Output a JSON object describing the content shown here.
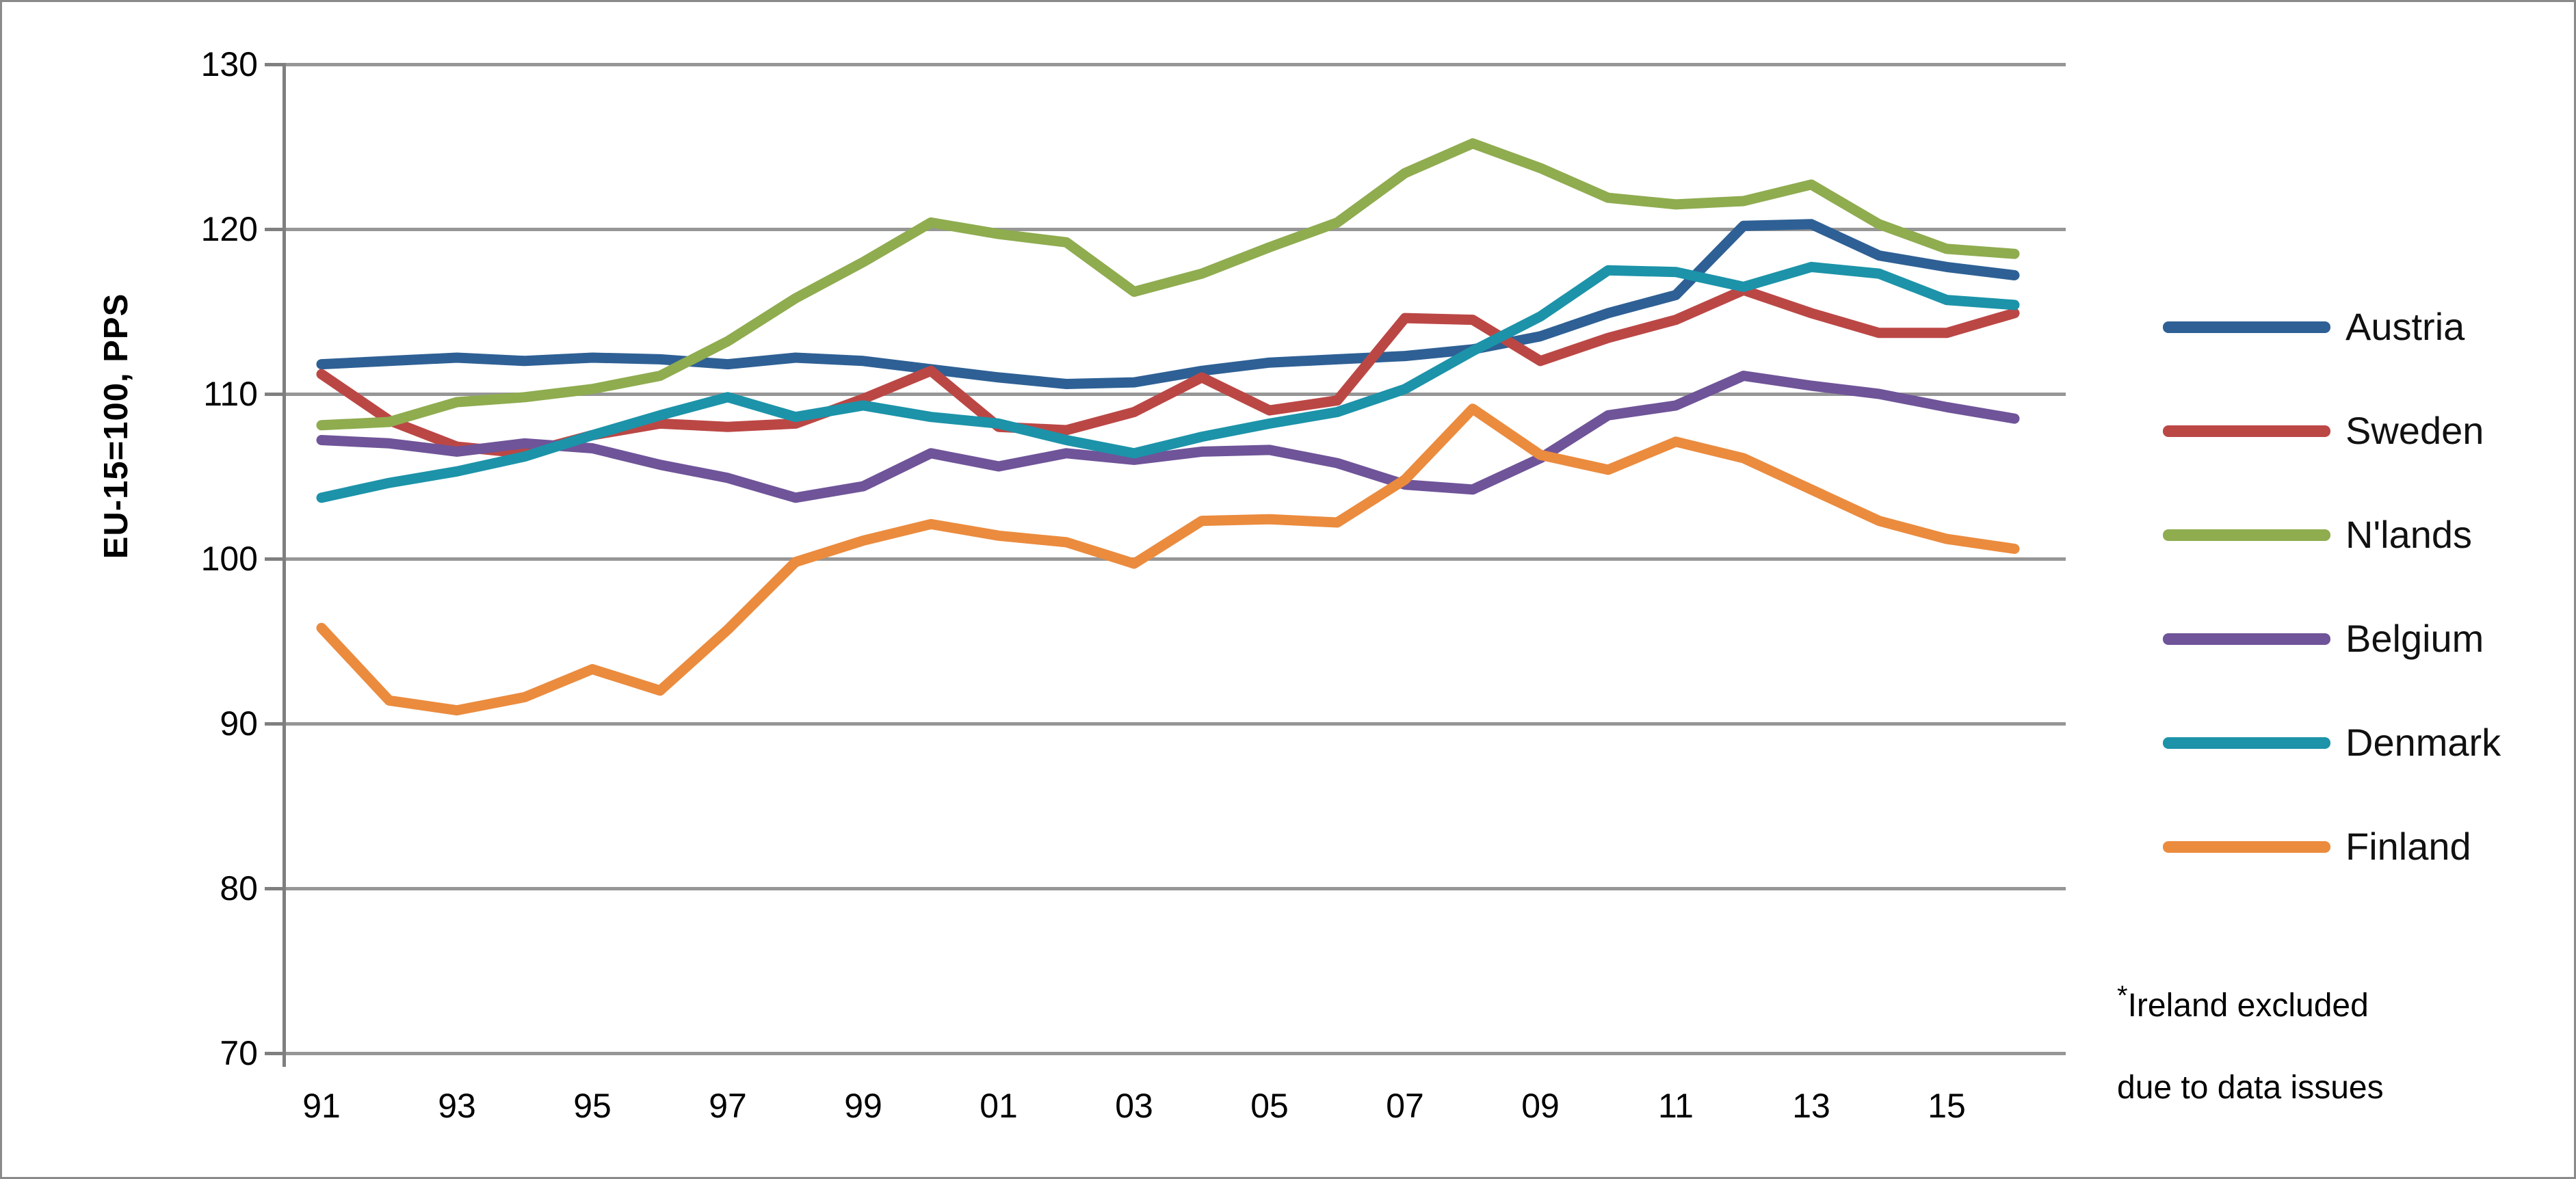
{
  "chart_data": {
    "type": "line",
    "title": "",
    "ylabel": "EU-15=100, PPS",
    "x": [
      1991,
      1992,
      1993,
      1994,
      1995,
      1996,
      1997,
      1998,
      1999,
      2000,
      2001,
      2002,
      2003,
      2004,
      2005,
      2006,
      2007,
      2008,
      2009,
      2010,
      2011,
      2012,
      2013,
      2014,
      2015,
      2016
    ],
    "x_tick_years": [
      1991,
      1993,
      1995,
      1997,
      1999,
      2001,
      2003,
      2005,
      2007,
      2009,
      2011,
      2013,
      2015
    ],
    "x_tick_labels": [
      "91",
      "93",
      "95",
      "97",
      "99",
      "01",
      "03",
      "05",
      "07",
      "09",
      "11",
      "13",
      "15"
    ],
    "y_ticks": [
      130,
      120,
      110,
      100,
      90,
      80,
      70
    ],
    "ylim": [
      70,
      130
    ],
    "grid": "horizontal",
    "legend_position": "right",
    "series": [
      {
        "name": "Austria",
        "color": "#2e6095",
        "values": [
          111.8,
          112.0,
          112.2,
          112.0,
          112.2,
          112.1,
          111.8,
          112.2,
          112.0,
          111.5,
          111.0,
          110.6,
          110.7,
          111.4,
          111.9,
          112.1,
          112.3,
          112.7,
          113.5,
          114.9,
          116.0,
          120.2,
          120.3,
          118.4,
          117.7,
          117.2
        ]
      },
      {
        "name": "Sweden",
        "color": "#bb4745",
        "values": [
          111.2,
          108.4,
          106.8,
          106.4,
          107.5,
          108.2,
          108.0,
          108.2,
          109.7,
          111.4,
          108.0,
          107.8,
          108.9,
          111.0,
          109.0,
          109.6,
          114.6,
          114.5,
          112.0,
          113.4,
          114.5,
          116.3,
          114.9,
          113.7,
          113.7,
          114.9
        ]
      },
      {
        "name": "N'lands",
        "color": "#8fac4f",
        "values": [
          108.1,
          108.3,
          109.5,
          109.8,
          110.3,
          111.1,
          113.2,
          115.8,
          118.0,
          120.4,
          119.7,
          119.2,
          116.2,
          117.3,
          118.9,
          120.4,
          123.4,
          125.2,
          123.7,
          121.9,
          121.5,
          121.7,
          122.7,
          120.3,
          118.8,
          118.5
        ]
      },
      {
        "name": "Belgium",
        "color": "#6f5499",
        "values": [
          107.2,
          107.0,
          106.5,
          107.0,
          106.7,
          105.7,
          104.9,
          103.7,
          104.4,
          106.4,
          105.6,
          106.4,
          106.0,
          106.5,
          106.6,
          105.8,
          104.5,
          104.2,
          106.1,
          108.7,
          109.3,
          111.1,
          110.5,
          110.0,
          109.2,
          108.5
        ]
      },
      {
        "name": "Denmark",
        "color": "#1c93a9",
        "values": [
          103.7,
          104.6,
          105.3,
          106.2,
          107.5,
          108.7,
          109.8,
          108.6,
          109.3,
          108.6,
          108.2,
          107.2,
          106.4,
          107.4,
          108.2,
          108.9,
          110.3,
          112.6,
          114.7,
          117.5,
          117.4,
          116.5,
          117.7,
          117.3,
          115.7,
          115.4
        ]
      },
      {
        "name": "Finland",
        "color": "#eb8b3e",
        "values": [
          95.8,
          91.4,
          90.8,
          91.6,
          93.3,
          92.0,
          95.7,
          99.8,
          101.1,
          102.1,
          101.4,
          101.0,
          99.7,
          102.3,
          102.4,
          102.2,
          104.8,
          109.1,
          106.3,
          105.4,
          107.1,
          106.1,
          104.2,
          102.3,
          101.2,
          100.6
        ]
      }
    ]
  },
  "footnote": {
    "star": "*",
    "line1": "Ireland excluded",
    "line2": "due to data issues"
  }
}
